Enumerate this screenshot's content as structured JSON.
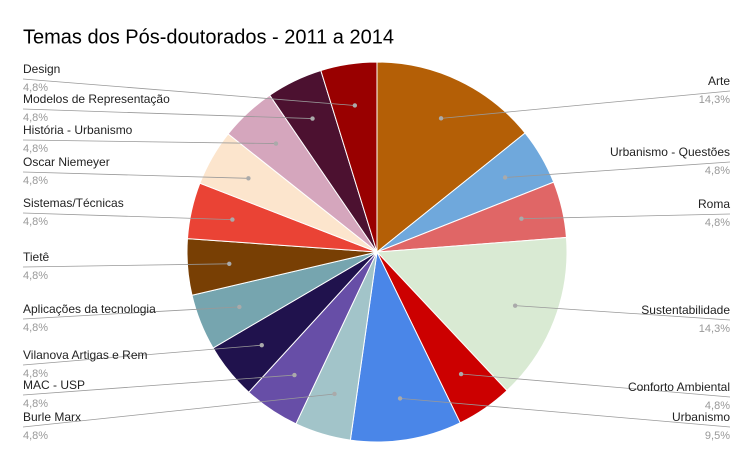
{
  "chart_data": {
    "type": "pie",
    "title": "Temas dos Pós-doutorados - 2011 a 2014",
    "categories": [
      "Arte",
      "Urbanismo - Questões",
      "Roma",
      "Sustentabilidade",
      "Conforto Ambiental",
      "Urbanismo",
      "Burle Marx",
      "MAC - USP",
      "Vilanova Artigas e Rem",
      "Aplicações da tecnologia",
      "Tietê",
      "Sistemas/Técnicas",
      "Oscar Niemeyer",
      "História - Urbanismo",
      "Modelos de Representação",
      "Design"
    ],
    "values": [
      14.3,
      4.8,
      4.8,
      14.3,
      4.8,
      9.5,
      4.8,
      4.8,
      4.8,
      4.8,
      4.8,
      4.8,
      4.8,
      4.8,
      4.8,
      4.8
    ],
    "value_labels": [
      "14,3%",
      "4,8%",
      "4,8%",
      "14,3%",
      "4,8%",
      "9,5%",
      "4,8%",
      "4,8%",
      "4,8%",
      "4,8%",
      "4,8%",
      "4,8%",
      "4,8%",
      "4,8%",
      "4,8%",
      "4,8%"
    ],
    "colors": [
      "#b45f06",
      "#6fa8dc",
      "#e06666",
      "#d9ead3",
      "#cc0000",
      "#4a86e8",
      "#a2c4c9",
      "#674ea7",
      "#20124d",
      "#76a5af",
      "#783f04",
      "#ea4335",
      "#fce5cd",
      "#d5a6bd",
      "#4c1130",
      "#990000"
    ]
  }
}
